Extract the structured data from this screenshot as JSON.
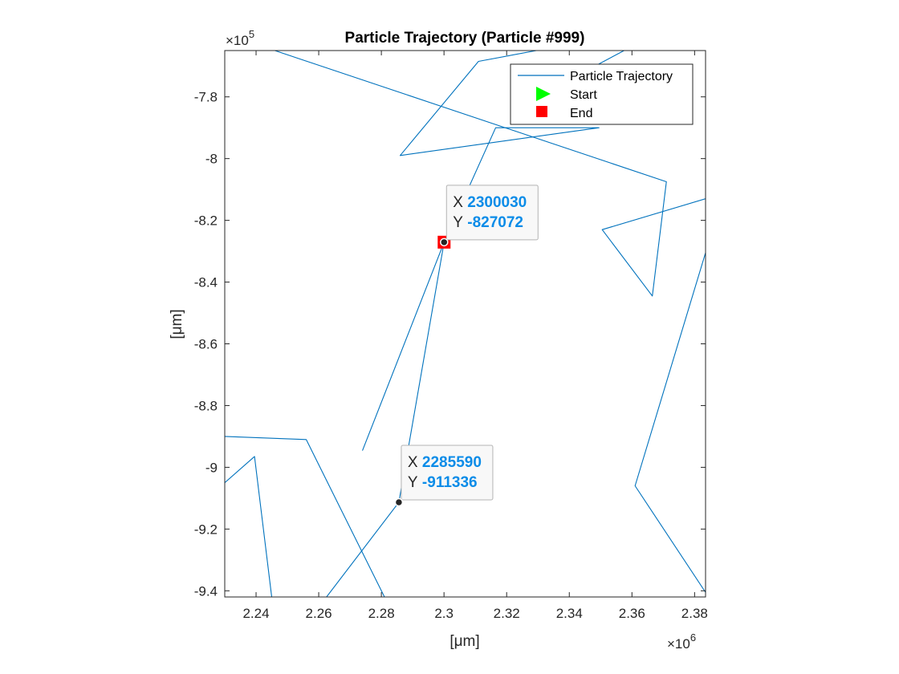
{
  "chart_data": {
    "type": "line",
    "title": "Particle Trajectory (Particle #999)",
    "xlabel": "[μm]",
    "ylabel": "[μm]",
    "xlim": [
      2230000,
      2383500
    ],
    "ylim": [
      -942000,
      -765000
    ],
    "x_exponent_label": "×10",
    "x_exponent": "6",
    "y_exponent_label": "×10",
    "y_exponent": "5",
    "x_ticks": [
      2240000,
      2260000,
      2280000,
      2300000,
      2320000,
      2340000,
      2360000,
      2380000
    ],
    "x_tick_labels": [
      "2.24",
      "2.26",
      "2.28",
      "2.3",
      "2.32",
      "2.34",
      "2.36",
      "2.38"
    ],
    "y_ticks": [
      -780000,
      -800000,
      -820000,
      -840000,
      -860000,
      -880000,
      -900000,
      -920000,
      -940000
    ],
    "y_tick_labels": [
      "-7.8",
      "-8",
      "-8.2",
      "-8.4",
      "-8.6",
      "-8.8",
      "-9",
      "-9.2",
      "-9.4"
    ],
    "grid": false,
    "legend_position": "top-right",
    "series": [
      {
        "name": "Particle Trajectory",
        "color": "#0072bd",
        "segments": [
          [
            [
              2230000,
              -890000
            ],
            [
              2256000,
              -891000
            ],
            [
              2281000,
              -942000
            ]
          ],
          [
            [
              2230000,
              -905000
            ],
            [
              2239500,
              -896500
            ],
            [
              2245000,
              -942000
            ]
          ],
          [
            [
              2246000,
              -765000
            ],
            [
              2371000,
              -807500
            ],
            [
              2366500,
              -844500
            ],
            [
              2350500,
              -823000
            ],
            [
              2383500,
              -813000
            ]
          ],
          [
            [
              2262500,
              -942000
            ],
            [
              2285590,
              -911336
            ],
            [
              2300030,
              -827072
            ],
            [
              2274000,
              -894500
            ],
            [
              2300030,
              -827072
            ],
            [
              2316500,
              -790000
            ],
            [
              2349500,
              -790000
            ],
            [
              2286000,
              -799000
            ],
            [
              2311000,
              -768500
            ],
            [
              2329500,
              -765000
            ]
          ],
          [
            [
              2383500,
              -830500
            ],
            [
              2361000,
              -906000
            ],
            [
              2383500,
              -940500
            ]
          ],
          [
            [
              2339000,
              -775000
            ],
            [
              2357500,
              -765000
            ]
          ]
        ]
      }
    ],
    "legend": [
      {
        "label": "Particle Trajectory",
        "marker": "line",
        "color": "#0072bd"
      },
      {
        "label": "Start",
        "marker": "triangle",
        "color": "#00ff00"
      },
      {
        "label": "End",
        "marker": "square",
        "color": "#ff0000"
      }
    ],
    "end_point": {
      "x": 2300030,
      "y": -827072,
      "color": "#ff0000"
    },
    "datatips": [
      {
        "x": 2300030,
        "y": -827072,
        "x_key": "X",
        "y_key": "Y",
        "x_value": "2300030",
        "y_value": "-827072"
      },
      {
        "x": 2285590,
        "y": -911336,
        "x_key": "X",
        "y_key": "Y",
        "x_value": "2285590",
        "y_value": "-911336"
      }
    ]
  }
}
